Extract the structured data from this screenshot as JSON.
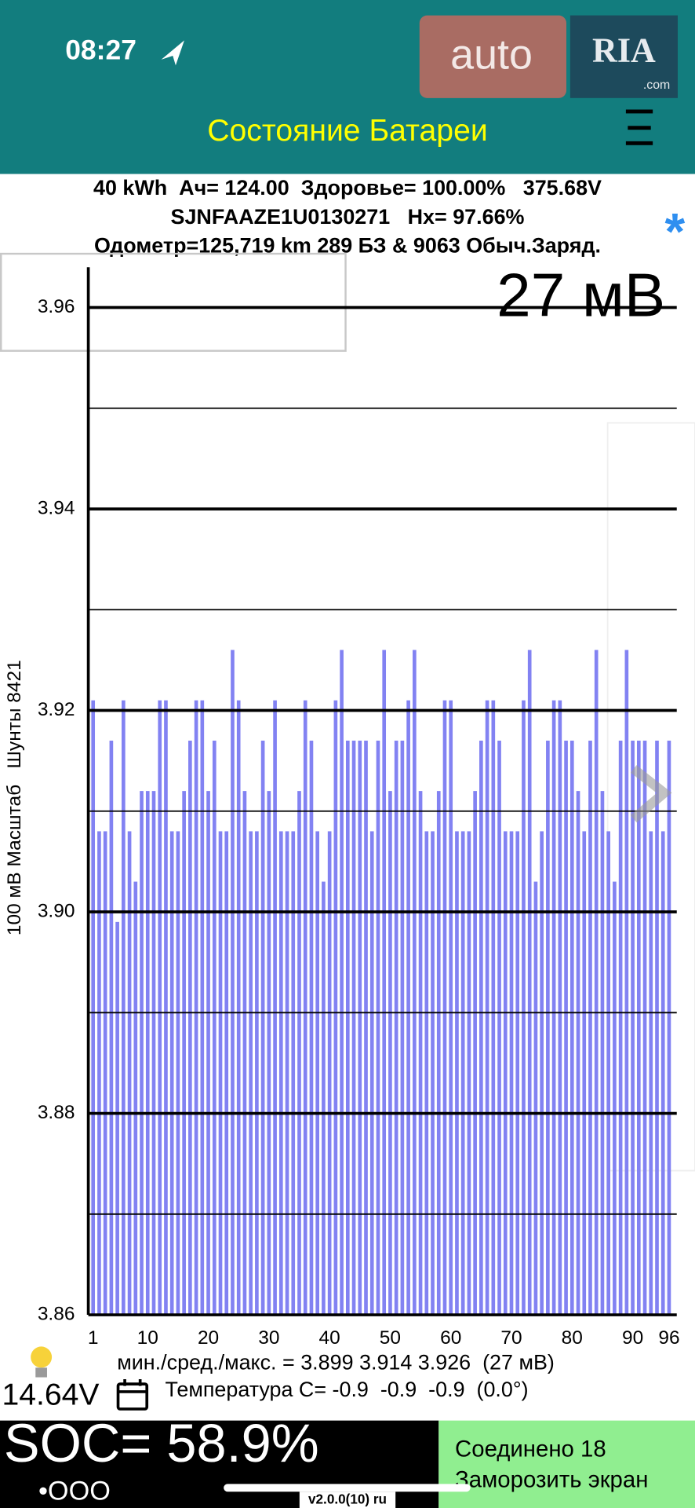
{
  "status_bar": {
    "time": "08:27"
  },
  "watermark": {
    "brand": "auto",
    "logo": "RIA",
    "domain": ".com"
  },
  "header": {
    "title": "Состояние Батареи"
  },
  "info": {
    "line1": "40 kWh  Ач= 124.00  Здоровье= 100.00%   375.68V",
    "line2": "SJNFAAZE1U0130271   Hx= 97.66%",
    "line3": "Одометр=125,719 km 289 БЗ & 9063 Обыч.Заряд.",
    "asterisk": "*"
  },
  "chart_data": {
    "type": "bar",
    "annotation": "27 мВ",
    "y_label": "100 мВ Масштаб   Шунты 8421",
    "categories": [
      "1",
      null,
      null,
      null,
      null,
      null,
      null,
      null,
      null,
      "10",
      null,
      null,
      null,
      null,
      null,
      null,
      null,
      null,
      null,
      "20",
      null,
      null,
      null,
      null,
      null,
      null,
      null,
      null,
      null,
      "30",
      null,
      null,
      null,
      null,
      null,
      null,
      null,
      null,
      null,
      "40",
      null,
      null,
      null,
      null,
      null,
      null,
      null,
      null,
      null,
      "50",
      null,
      null,
      null,
      null,
      null,
      null,
      null,
      null,
      null,
      "60",
      null,
      null,
      null,
      null,
      null,
      null,
      null,
      null,
      null,
      "70",
      null,
      null,
      null,
      null,
      null,
      null,
      null,
      null,
      null,
      "80",
      null,
      null,
      null,
      null,
      null,
      null,
      null,
      null,
      null,
      "90",
      null,
      null,
      null,
      null,
      null,
      "96"
    ],
    "values": [
      3.921,
      3.908,
      3.908,
      3.917,
      3.899,
      3.921,
      3.908,
      3.903,
      3.912,
      3.912,
      3.912,
      3.921,
      3.921,
      3.908,
      3.908,
      3.912,
      3.917,
      3.921,
      3.921,
      3.912,
      3.917,
      3.908,
      3.908,
      3.926,
      3.921,
      3.912,
      3.908,
      3.908,
      3.917,
      3.912,
      3.921,
      3.908,
      3.908,
      3.908,
      3.912,
      3.921,
      3.917,
      3.908,
      3.903,
      3.908,
      3.921,
      3.926,
      3.917,
      3.917,
      3.917,
      3.917,
      3.908,
      3.917,
      3.926,
      3.912,
      3.917,
      3.917,
      3.921,
      3.926,
      3.912,
      3.908,
      3.908,
      3.912,
      3.921,
      3.921,
      3.908,
      3.908,
      3.908,
      3.912,
      3.917,
      3.921,
      3.921,
      3.917,
      3.908,
      3.908,
      3.908,
      3.921,
      3.926,
      3.903,
      3.908,
      3.917,
      3.921,
      3.921,
      3.917,
      3.917,
      3.912,
      3.908,
      3.917,
      3.926,
      3.912,
      3.908,
      3.903,
      3.917,
      3.926,
      3.917,
      3.917,
      3.917,
      3.908,
      3.917,
      3.908,
      3.917
    ],
    "color": "#8282f2",
    "ylim": [
      3.86,
      3.964
    ],
    "yticks": [
      3.86,
      3.88,
      {
        "value": 3.9,
        "label": "3.90"
      },
      3.92,
      3.94,
      3.96
    ],
    "minor_yticks": [
      3.87,
      3.89,
      3.91,
      3.93,
      3.95
    ],
    "grid": true
  },
  "stats": "мин./сред./макс. = 3.899 3.914 3.926  (27 мВ)",
  "aux_voltage": "14.64V",
  "temperature": "Температура C= -0.9  -0.9  -0.9  (0.0°)",
  "soc": "SOC= 58.9%",
  "signal": "•OOO",
  "connection": {
    "status": "Соединено 18",
    "freeze": "Заморозить экран"
  },
  "version": "v2.0.0(10) ru"
}
